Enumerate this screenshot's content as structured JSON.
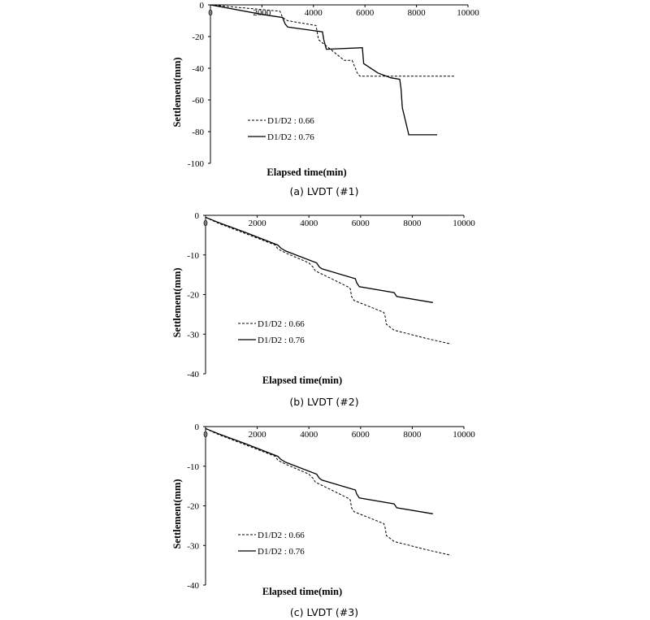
{
  "chart_data": [
    {
      "type": "line",
      "caption": "(a) LVDT (#1)",
      "xlabel": "Elapsed time(min)",
      "ylabel": "Settlement(mm)",
      "xlim": [
        0,
        10000
      ],
      "ylim": [
        -100,
        0
      ],
      "xticks": [
        "0",
        "2000",
        "4000",
        "6000",
        "8000",
        "10000"
      ],
      "yticks": [
        "0",
        "-20",
        "-40",
        "-60",
        "-80",
        "-100"
      ],
      "legend_position": "lower-left",
      "series": [
        {
          "name": "D1/D2 : 0.66",
          "style": "dashed",
          "points": [
            [
              0,
              0
            ],
            [
              2000,
              -3
            ],
            [
              2700,
              -4
            ],
            [
              2800,
              -8
            ],
            [
              3000,
              -10
            ],
            [
              4100,
              -13
            ],
            [
              4150,
              -18
            ],
            [
              4200,
              -22
            ],
            [
              5200,
              -35
            ],
            [
              5500,
              -35
            ],
            [
              5700,
              -43
            ],
            [
              5800,
              -45
            ],
            [
              9500,
              -45
            ]
          ]
        },
        {
          "name": "D1/D2 : 0.76",
          "style": "solid",
          "points": [
            [
              0,
              0
            ],
            [
              2000,
              -6
            ],
            [
              2800,
              -8
            ],
            [
              2900,
              -12
            ],
            [
              3000,
              -14
            ],
            [
              4350,
              -17
            ],
            [
              4400,
              -22
            ],
            [
              4500,
              -28
            ],
            [
              5900,
              -27
            ],
            [
              5950,
              -37
            ],
            [
              6500,
              -43
            ],
            [
              7000,
              -46
            ],
            [
              7350,
              -47
            ],
            [
              7400,
              -53
            ],
            [
              7450,
              -65
            ],
            [
              7600,
              -75
            ],
            [
              7700,
              -82
            ],
            [
              8800,
              -82
            ]
          ]
        }
      ]
    },
    {
      "type": "line",
      "caption": "(b) LVDT (#2)",
      "xlabel": "Elapsed time(min)",
      "ylabel": "Settlement(mm)",
      "xlim": [
        0,
        10000
      ],
      "ylim": [
        -40,
        0
      ],
      "xticks": [
        "0",
        "2000",
        "4000",
        "6000",
        "8000",
        "10000"
      ],
      "yticks": [
        "0",
        "-10",
        "-20",
        "-30",
        "-40"
      ],
      "legend_position": "lower-left",
      "series": [
        {
          "name": "D1/D2 : 0.66",
          "style": "dashed",
          "points": [
            [
              0,
              -0.5
            ],
            [
              500,
              -2
            ],
            [
              1500,
              -4.5
            ],
            [
              2700,
              -7.5
            ],
            [
              2800,
              -8.5
            ],
            [
              3100,
              -9.5
            ],
            [
              4000,
              -12
            ],
            [
              4150,
              -13
            ],
            [
              4250,
              -14
            ],
            [
              5500,
              -18
            ],
            [
              5600,
              -18.5
            ],
            [
              5650,
              -20.5
            ],
            [
              5750,
              -21.5
            ],
            [
              6900,
              -24.5
            ],
            [
              6950,
              -25.5
            ],
            [
              7000,
              -27.5
            ],
            [
              7300,
              -29
            ],
            [
              8500,
              -31
            ],
            [
              9500,
              -32.5
            ]
          ]
        },
        {
          "name": "D1/D2 : 0.76",
          "style": "solid",
          "points": [
            [
              0,
              -0.5
            ],
            [
              500,
              -1.8
            ],
            [
              1500,
              -4.2
            ],
            [
              2800,
              -7.5
            ],
            [
              2900,
              -8.2
            ],
            [
              3100,
              -9
            ],
            [
              4300,
              -12
            ],
            [
              4400,
              -13
            ],
            [
              4500,
              -13.5
            ],
            [
              5800,
              -16
            ],
            [
              5850,
              -17
            ],
            [
              5950,
              -18
            ],
            [
              7300,
              -19.5
            ],
            [
              7400,
              -20.5
            ],
            [
              8800,
              -22
            ]
          ]
        }
      ]
    },
    {
      "type": "line",
      "caption": "(c) LVDT (#3)",
      "xlabel": "Elapsed time(min)",
      "ylabel": "Settlement(mm)",
      "xlim": [
        0,
        10000
      ],
      "ylim": [
        -40,
        0
      ],
      "xticks": [
        "0",
        "2000",
        "4000",
        "6000",
        "8000",
        "10000"
      ],
      "yticks": [
        "0",
        "-10",
        "-20",
        "-30",
        "-40"
      ],
      "legend_position": "lower-left",
      "series": [
        {
          "name": "D1/D2 : 0.66",
          "style": "dashed",
          "points": [
            [
              0,
              -0.5
            ],
            [
              500,
              -2
            ],
            [
              1500,
              -4.5
            ],
            [
              2700,
              -7.5
            ],
            [
              2800,
              -8.5
            ],
            [
              3100,
              -9.5
            ],
            [
              4000,
              -12
            ],
            [
              4150,
              -13
            ],
            [
              4250,
              -14
            ],
            [
              5500,
              -18
            ],
            [
              5600,
              -18.5
            ],
            [
              5650,
              -20.5
            ],
            [
              5750,
              -21.5
            ],
            [
              6900,
              -24.5
            ],
            [
              6950,
              -25.5
            ],
            [
              7000,
              -27.5
            ],
            [
              7300,
              -29
            ],
            [
              8500,
              -31
            ],
            [
              9500,
              -32.5
            ]
          ]
        },
        {
          "name": "D1/D2 : 0.76",
          "style": "solid",
          "points": [
            [
              0,
              -0.5
            ],
            [
              500,
              -1.8
            ],
            [
              1500,
              -4.2
            ],
            [
              2800,
              -7.5
            ],
            [
              2900,
              -8.2
            ],
            [
              3100,
              -9
            ],
            [
              4300,
              -12
            ],
            [
              4400,
              -13
            ],
            [
              4500,
              -13.5
            ],
            [
              5800,
              -16
            ],
            [
              5850,
              -17
            ],
            [
              5950,
              -18
            ],
            [
              7300,
              -19.5
            ],
            [
              7400,
              -20.5
            ],
            [
              8800,
              -22
            ]
          ]
        }
      ]
    }
  ]
}
